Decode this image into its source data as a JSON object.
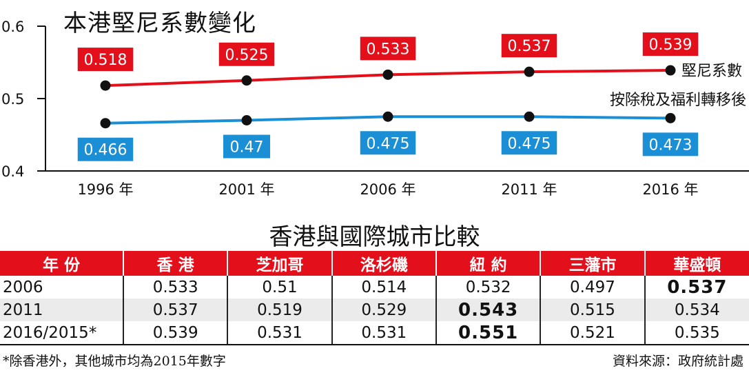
{
  "chart_data": {
    "type": "line",
    "title": "本港堅尼系數變化",
    "categories": [
      "1996 年",
      "2001 年",
      "2006 年",
      "2011 年",
      "2016 年"
    ],
    "ylim": [
      0.4,
      0.6
    ],
    "yticks": [
      "0.4",
      "0.5",
      "0.6"
    ],
    "series": [
      {
        "name": "堅尼系數",
        "values": [
          0.518,
          0.525,
          0.533,
          0.537,
          0.539
        ],
        "labels": [
          "0.518",
          "0.525",
          "0.533",
          "0.537",
          "0.539"
        ],
        "color": "#e3101c"
      },
      {
        "name": "按除稅及福利轉移後",
        "values": [
          0.466,
          0.47,
          0.475,
          0.475,
          0.473
        ],
        "labels": [
          "0.466",
          "0.47",
          "0.475",
          "0.475",
          "0.473"
        ],
        "color": "#1a8fd6"
      }
    ]
  },
  "table": {
    "title": "香港與國際城市比較",
    "headers": [
      "年 份",
      "香 港",
      "芝加哥",
      "洛杉磯",
      "紐 約",
      "三藩市",
      "華盛頓"
    ],
    "rows": [
      [
        "2006",
        "0.533",
        "0.51",
        "0.514",
        "0.532",
        "0.497",
        "0.537"
      ],
      [
        "2011",
        "0.537",
        "0.519",
        "0.529",
        "0.543",
        "0.515",
        "0.534"
      ],
      [
        "2016/2015*",
        "0.539",
        "0.531",
        "0.531",
        "0.551",
        "0.521",
        "0.535"
      ]
    ]
  },
  "footnote": "*除香港外，其他城市均為2015年數字",
  "source": "資料來源：政府統計處",
  "colors": {
    "red": "#e3101c",
    "blue": "#1a8fd6"
  }
}
